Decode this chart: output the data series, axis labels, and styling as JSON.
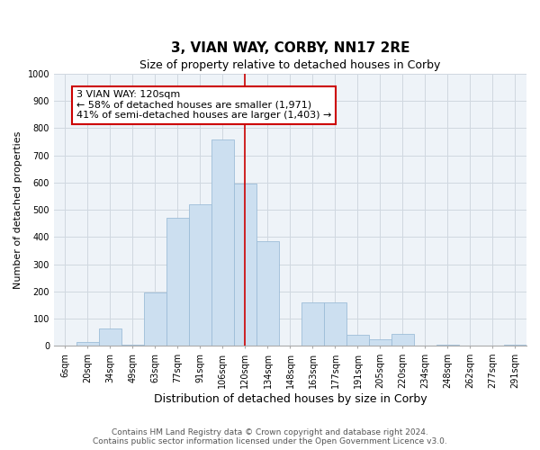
{
  "title": "3, VIAN WAY, CORBY, NN17 2RE",
  "subtitle": "Size of property relative to detached houses in Corby",
  "xlabel": "Distribution of detached houses by size in Corby",
  "ylabel": "Number of detached properties",
  "bar_labels": [
    "6sqm",
    "20sqm",
    "34sqm",
    "49sqm",
    "63sqm",
    "77sqm",
    "91sqm",
    "106sqm",
    "120sqm",
    "134sqm",
    "148sqm",
    "163sqm",
    "177sqm",
    "191sqm",
    "205sqm",
    "220sqm",
    "234sqm",
    "248sqm",
    "262sqm",
    "277sqm",
    "291sqm"
  ],
  "bar_values": [
    0,
    13,
    65,
    5,
    195,
    470,
    520,
    760,
    595,
    385,
    0,
    160,
    160,
    40,
    25,
    45,
    0,
    5,
    0,
    0,
    5
  ],
  "bar_color": "#ccdff0",
  "bar_edgecolor": "#9dbdd8",
  "vline_x_index": 8,
  "vline_color": "#cc0000",
  "annotation_line1": "3 VIAN WAY: 120sqm",
  "annotation_line2": "← 58% of detached houses are smaller (1,971)",
  "annotation_line3": "41% of semi-detached houses are larger (1,403) →",
  "annotation_box_color": "#ffffff",
  "annotation_box_edgecolor": "#cc0000",
  "ylim": [
    0,
    1000
  ],
  "yticks": [
    0,
    100,
    200,
    300,
    400,
    500,
    600,
    700,
    800,
    900,
    1000
  ],
  "footer1": "Contains HM Land Registry data © Crown copyright and database right 2024.",
  "footer2": "Contains public sector information licensed under the Open Government Licence v3.0.",
  "background_color": "#ffffff",
  "plot_bg_color": "#eef3f8",
  "grid_color": "#d0d8e0",
  "title_fontsize": 11,
  "subtitle_fontsize": 9,
  "xlabel_fontsize": 9,
  "ylabel_fontsize": 8,
  "tick_fontsize": 7,
  "annotation_fontsize": 8,
  "footer_fontsize": 6.5
}
